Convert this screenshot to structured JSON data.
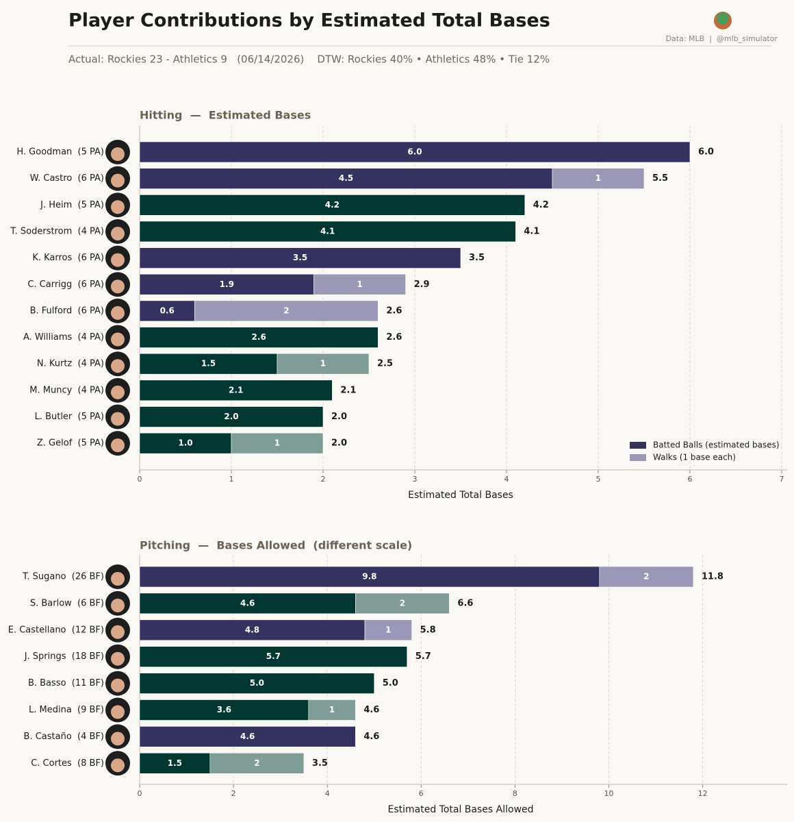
{
  "header": {
    "title": "Player Contributions by Estimated Total Bases",
    "source": "Data: MLB  |  @mlb_simulator",
    "subtitle": "Actual: Rockies 23 - Athletics 9   (06/14/2026)    DTW: Rockies 40% • Athletics 48% • Tie 12%"
  },
  "chart_data": [
    {
      "type": "bar",
      "orientation": "horizontal",
      "stacked": true,
      "title": "Hitting  —  Estimated Bases",
      "x_label": "Estimated Total Bases",
      "categories": [
        "H. Goodman  (5 PA)",
        "W. Castro  (6 PA)",
        "J. Heim  (5 PA)",
        "T. Soderstrom  (4 PA)",
        "K. Karros  (6 PA)",
        "C. Carrigg  (6 PA)",
        "B. Fulford  (6 PA)",
        "A. Williams  (4 PA)",
        "N. Kurtz  (4 PA)",
        "M. Muncy  (4 PA)",
        "L. Butler  (5 PA)",
        "Z. Gelof  (5 PA)"
      ],
      "series": [
        {
          "name": "Batted Balls (estimated bases)",
          "color": "#35325f",
          "colors": [
            "#35325f",
            "#35325f",
            "#003831",
            "#003831",
            "#35325f",
            "#35325f",
            "#35325f",
            "#003831",
            "#003831",
            "#003831",
            "#003831",
            "#003831"
          ],
          "values": [
            6.0,
            4.5,
            4.2,
            4.1,
            3.5,
            1.9,
            0.6,
            2.6,
            1.5,
            2.1,
            2.0,
            1.0
          ],
          "value_labels": [
            "6.0",
            "4.5",
            "4.2",
            "4.1",
            "3.5",
            "1.9",
            "0.6",
            "2.6",
            "1.5",
            "2.1",
            "2.0",
            "1.0"
          ]
        },
        {
          "name": "Walks (1 base each)",
          "color": "#9a98b6",
          "colors": [
            "#9a98b6",
            "#9a98b6",
            "#7f9c96",
            "#7f9c96",
            "#9a98b6",
            "#9a98b6",
            "#9a98b6",
            "#7f9c96",
            "#7f9c96",
            "#7f9c96",
            "#7f9c96",
            "#7f9c96"
          ],
          "values": [
            null,
            1,
            null,
            null,
            null,
            1,
            2,
            null,
            1,
            null,
            null,
            1
          ]
        }
      ],
      "totals": {
        "values": [
          6.0,
          5.5,
          4.2,
          4.1,
          3.5,
          2.9,
          2.6,
          2.6,
          2.5,
          2.1,
          2.0,
          2.0
        ],
        "value_labels": [
          "6.0",
          "5.5",
          "4.2",
          "4.1",
          "3.5",
          "2.9",
          "2.6",
          "2.6",
          "2.5",
          "2.1",
          "2.0",
          "2.0"
        ]
      },
      "xlim": [
        0,
        7.06
      ],
      "xticks": [
        0,
        1,
        2,
        3,
        4,
        5,
        6,
        7
      ],
      "grid": true,
      "legend": "lower right"
    },
    {
      "type": "bar",
      "orientation": "horizontal",
      "stacked": true,
      "title": "Pitching  —  Bases Allowed  (different scale)",
      "x_label": "Estimated Total Bases Allowed",
      "categories": [
        "T. Sugano  (26 BF)",
        "S. Barlow  (6 BF)",
        "E. Castellano  (12 BF)",
        "J. Springs  (18 BF)",
        "B. Basso  (11 BF)",
        "L. Medina  (9 BF)",
        "B. Castaño  (4 BF)",
        "C. Cortes  (8 BF)"
      ],
      "series": [
        {
          "name": "Batted Balls (estimated bases)",
          "color": "#35325f",
          "colors": [
            "#35325f",
            "#003831",
            "#35325f",
            "#003831",
            "#003831",
            "#003831",
            "#35325f",
            "#003831"
          ],
          "values": [
            9.8,
            4.6,
            4.8,
            5.7,
            5.0,
            3.6,
            4.6,
            1.5
          ],
          "value_labels": [
            "9.8",
            "4.6",
            "4.8",
            "5.7",
            "5.0",
            "3.6",
            "4.6",
            "1.5"
          ]
        },
        {
          "name": "Walks (1 base each)",
          "color": "#9a98b6",
          "colors": [
            "#9a98b6",
            "#7f9c96",
            "#9a98b6",
            "#7f9c96",
            "#7f9c96",
            "#7f9c96",
            "#9a98b6",
            "#7f9c96"
          ],
          "values": [
            2,
            2,
            1,
            null,
            null,
            1,
            null,
            2
          ]
        }
      ],
      "totals": {
        "values": [
          11.8,
          6.6,
          5.8,
          5.7,
          5.0,
          4.6,
          4.6,
          3.5
        ],
        "value_labels": [
          "11.8",
          "6.6",
          "5.8",
          "5.7",
          "5.0",
          "4.6",
          "4.6",
          "3.5"
        ]
      },
      "xlim": [
        0,
        13.8
      ],
      "xticks": [
        0,
        2,
        4,
        6,
        8,
        10,
        12
      ],
      "grid": true
    }
  ]
}
